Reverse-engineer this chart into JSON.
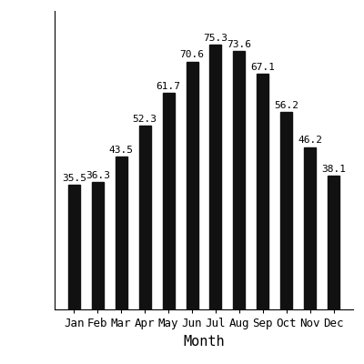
{
  "months": [
    "Jan",
    "Feb",
    "Mar",
    "Apr",
    "May",
    "Jun",
    "Jul",
    "Aug",
    "Sep",
    "Oct",
    "Nov",
    "Dec"
  ],
  "temperatures": [
    35.5,
    36.3,
    43.5,
    52.3,
    61.7,
    70.6,
    75.3,
    73.6,
    67.1,
    56.2,
    46.2,
    38.1
  ],
  "bar_color": "#111111",
  "xlabel": "Month",
  "ylim": [
    0,
    85
  ],
  "label_fontsize": 11,
  "tick_fontsize": 9,
  "value_fontsize": 8,
  "background_color": "#ffffff"
}
